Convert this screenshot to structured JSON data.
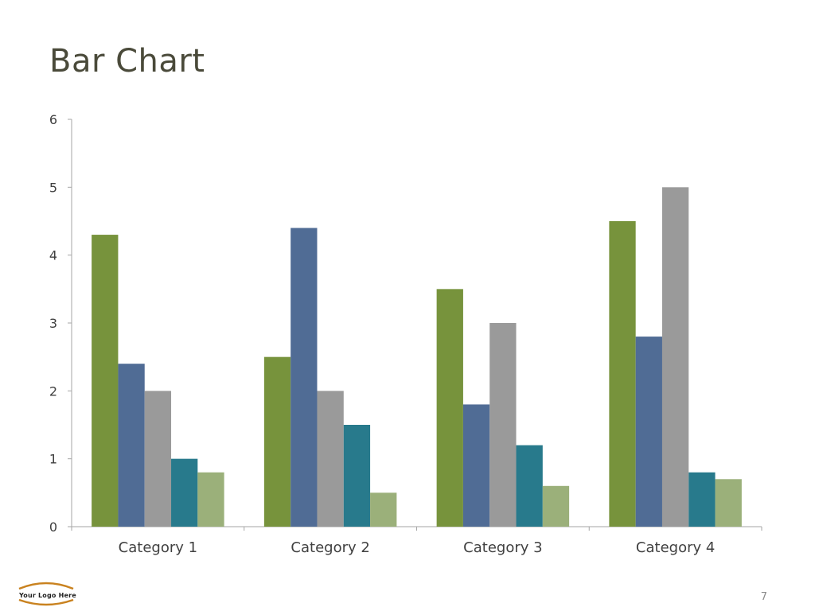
{
  "slide": {
    "title": "Bar Chart",
    "page_number": "7",
    "logo_text": "Your Logo Here"
  },
  "colors": {
    "title": "#4a4a3a",
    "axis": "#a6a6a6",
    "series": [
      "#77933c",
      "#506c95",
      "#9a9a9a",
      "#287a8c",
      "#9bb07a"
    ]
  },
  "chart_data": {
    "type": "bar",
    "title": "",
    "xlabel": "",
    "ylabel": "",
    "categories": [
      "Category 1",
      "Category 2",
      "Category 3",
      "Category 4"
    ],
    "series": [
      {
        "values": [
          4.3,
          2.5,
          3.5,
          4.5
        ]
      },
      {
        "values": [
          2.4,
          4.4,
          1.8,
          2.8
        ]
      },
      {
        "values": [
          2.0,
          2.0,
          3.0,
          5.0
        ]
      },
      {
        "values": [
          1.0,
          1.5,
          1.2,
          0.8
        ]
      },
      {
        "values": [
          0.8,
          0.5,
          0.6,
          0.7
        ]
      }
    ],
    "ylim": [
      0,
      6
    ],
    "yticks": [
      0,
      1,
      2,
      3,
      4,
      5,
      6
    ],
    "grid": false,
    "legend": "none"
  }
}
